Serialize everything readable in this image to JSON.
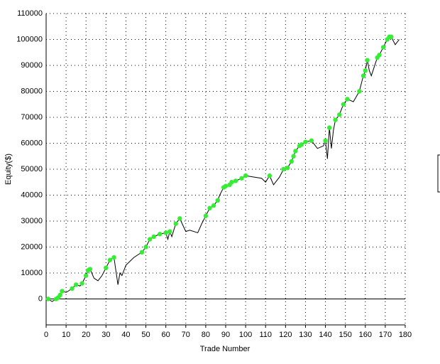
{
  "chart_data": {
    "type": "line",
    "xlabel": "Trade Number",
    "ylabel": "Equity($)",
    "xlim": [
      0,
      180
    ],
    "xticks": [
      0,
      10,
      20,
      30,
      40,
      50,
      60,
      70,
      80,
      90,
      100,
      110,
      120,
      130,
      140,
      150,
      160,
      170,
      180
    ],
    "ylim": [
      -10000,
      110000
    ],
    "yticks": [
      0,
      10000,
      20000,
      30000,
      40000,
      50000,
      60000,
      70000,
      80000,
      90000,
      100000,
      110000
    ],
    "grid": true,
    "series": [
      {
        "color": "#000000",
        "x": [
          0,
          1,
          3,
          5,
          6,
          7,
          8,
          10,
          13,
          15,
          17,
          18,
          20,
          21,
          22,
          24,
          26,
          28,
          30,
          32,
          34,
          36,
          37,
          38,
          40,
          44,
          48,
          50,
          52,
          54,
          57,
          60,
          61,
          62,
          63,
          65,
          67,
          70,
          72,
          76,
          78,
          80,
          82,
          84,
          86,
          87,
          89,
          90,
          92,
          93,
          95,
          98,
          100,
          104,
          108,
          110,
          112,
          114,
          117,
          119,
          121,
          123,
          124,
          125,
          127,
          128,
          130,
          133,
          136,
          139,
          140,
          141,
          142,
          143,
          144,
          145,
          147,
          149,
          151,
          154,
          157,
          159,
          160,
          161,
          162,
          163,
          166,
          167,
          169,
          171,
          172,
          173,
          175,
          177
        ],
        "values": [
          0,
          0,
          -1000,
          0,
          500,
          1500,
          3000,
          2500,
          4000,
          5500,
          5000,
          6000,
          9000,
          11000,
          11500,
          8000,
          7000,
          9000,
          12000,
          15000,
          16000,
          5500,
          10000,
          9000,
          13000,
          16000,
          18000,
          20000,
          23000,
          24000,
          25000,
          25500,
          23000,
          26000,
          24000,
          29000,
          31000,
          26000,
          26500,
          25500,
          29000,
          32000,
          35000,
          36000,
          38000,
          40000,
          43000,
          43500,
          44000,
          45000,
          45500,
          46500,
          47500,
          47000,
          46500,
          45000,
          47500,
          44000,
          47000,
          50000,
          50500,
          53000,
          55000,
          57000,
          59000,
          59500,
          60500,
          61000,
          58000,
          59000,
          61000,
          54000,
          66000,
          58000,
          65000,
          69000,
          71000,
          75000,
          77000,
          76000,
          80000,
          86000,
          88000,
          92000,
          88000,
          86000,
          93000,
          94000,
          97000,
          100000,
          101000,
          101000,
          98000,
          100000
        ]
      },
      {
        "color": "#33ee33",
        "marker": "dot",
        "x": [
          1,
          5,
          6,
          7,
          8,
          13,
          15,
          18,
          20,
          21,
          22,
          30,
          32,
          34,
          48,
          50,
          52,
          54,
          57,
          60,
          62,
          65,
          67,
          80,
          82,
          84,
          86,
          89,
          90,
          92,
          93,
          95,
          98,
          100,
          112,
          119,
          121,
          123,
          124,
          125,
          127,
          128,
          130,
          133,
          140,
          142,
          145,
          147,
          149,
          151,
          157,
          159,
          160,
          161,
          166,
          167,
          169,
          171,
          172,
          173
        ],
        "values": [
          0,
          0,
          500,
          1500,
          3000,
          4000,
          5500,
          6000,
          9000,
          11000,
          11500,
          12000,
          15000,
          16000,
          18000,
          20000,
          23000,
          24000,
          25000,
          25500,
          26000,
          29000,
          31000,
          32000,
          35000,
          36000,
          38000,
          43000,
          43500,
          44000,
          45000,
          45500,
          46500,
          47500,
          47500,
          50000,
          50500,
          53000,
          55000,
          57000,
          59000,
          59500,
          60500,
          61000,
          61000,
          66000,
          69000,
          71000,
          75000,
          77000,
          80000,
          86000,
          88000,
          92000,
          93000,
          94000,
          97000,
          100000,
          101000,
          101000
        ]
      }
    ]
  }
}
